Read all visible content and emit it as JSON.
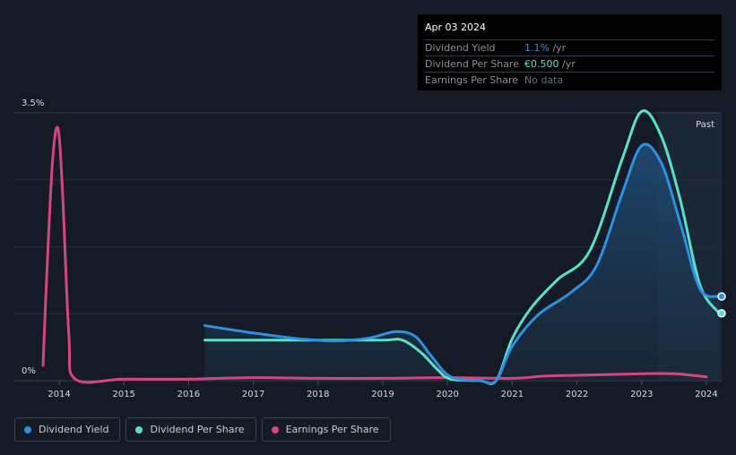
{
  "tooltip": {
    "date": "Apr 03 2024",
    "rows": [
      {
        "label": "Dividend Yield",
        "value": "1.1%",
        "unit": " /yr",
        "color": "#2f8fe0"
      },
      {
        "label": "Dividend Per Share",
        "value": "€0.500",
        "unit": " /yr",
        "color": "#5be0c8"
      },
      {
        "label": "Earnings Per Share",
        "value": "No data",
        "unit": "",
        "color": "#6b717b"
      }
    ]
  },
  "legend": [
    {
      "label": "Dividend Yield",
      "color": "#2f8fe0"
    },
    {
      "label": "Dividend Per Share",
      "color": "#5be0c8"
    },
    {
      "label": "Earnings Per Share",
      "color": "#d6457f"
    }
  ],
  "chart_data": {
    "type": "line",
    "title": "",
    "xlabel": "",
    "ylabel": "",
    "ylim": [
      0,
      3.5
    ],
    "xlim": [
      2013.5,
      2024.25
    ],
    "y_tick_labels": [
      "0%",
      "3.5%"
    ],
    "x_ticks": [
      "2014",
      "2015",
      "2016",
      "2017",
      "2018",
      "2019",
      "2020",
      "2021",
      "2022",
      "2023",
      "2024"
    ],
    "past_label": "Past",
    "past_start": 2023.25,
    "series": [
      {
        "name": "Dividend Yield",
        "color": "#2f8fe0",
        "points": [
          [
            2016.25,
            0.72
          ],
          [
            2016.7,
            0.66
          ],
          [
            2017.2,
            0.6
          ],
          [
            2017.8,
            0.54
          ],
          [
            2018.3,
            0.52
          ],
          [
            2018.8,
            0.56
          ],
          [
            2019.2,
            0.64
          ],
          [
            2019.5,
            0.58
          ],
          [
            2019.75,
            0.32
          ],
          [
            2020.05,
            0.05
          ],
          [
            2020.5,
            0.0
          ],
          [
            2020.75,
            0.0
          ],
          [
            2021.0,
            0.45
          ],
          [
            2021.4,
            0.86
          ],
          [
            2021.9,
            1.15
          ],
          [
            2022.3,
            1.5
          ],
          [
            2022.7,
            2.45
          ],
          [
            2023.0,
            3.07
          ],
          [
            2023.3,
            2.85
          ],
          [
            2023.6,
            2.05
          ],
          [
            2023.9,
            1.2
          ],
          [
            2024.2,
            1.1
          ]
        ],
        "end_value": 1.1
      },
      {
        "name": "Dividend Per Share",
        "color": "#5be0c8",
        "points": [
          [
            2016.25,
            0.53
          ],
          [
            2017.0,
            0.53
          ],
          [
            2018.0,
            0.53
          ],
          [
            2019.0,
            0.53
          ],
          [
            2019.3,
            0.53
          ],
          [
            2019.6,
            0.36
          ],
          [
            2019.85,
            0.14
          ],
          [
            2020.05,
            0.02
          ],
          [
            2020.5,
            0.0
          ],
          [
            2020.75,
            0.0
          ],
          [
            2021.0,
            0.55
          ],
          [
            2021.3,
            0.96
          ],
          [
            2021.7,
            1.32
          ],
          [
            2022.2,
            1.7
          ],
          [
            2022.7,
            2.9
          ],
          [
            2023.0,
            3.52
          ],
          [
            2023.3,
            3.2
          ],
          [
            2023.6,
            2.35
          ],
          [
            2023.9,
            1.25
          ],
          [
            2024.2,
            0.88
          ]
        ],
        "end_value": 0.88
      },
      {
        "name": "Earnings Per Share",
        "color": "#d6457f",
        "points": [
          [
            2013.75,
            0.2
          ],
          [
            2013.82,
            1.6
          ],
          [
            2013.9,
            2.9
          ],
          [
            2013.98,
            3.3
          ],
          [
            2014.05,
            2.5
          ],
          [
            2014.15,
            0.6
          ],
          [
            2014.25,
            0.02
          ],
          [
            2015.0,
            0.02
          ],
          [
            2016.0,
            0.02
          ],
          [
            2017.0,
            0.04
          ],
          [
            2018.0,
            0.03
          ],
          [
            2019.0,
            0.03
          ],
          [
            2020.0,
            0.04
          ],
          [
            2021.0,
            0.03
          ],
          [
            2021.5,
            0.06
          ],
          [
            2022.0,
            0.07
          ],
          [
            2023.0,
            0.09
          ],
          [
            2023.5,
            0.09
          ],
          [
            2024.0,
            0.05
          ]
        ]
      }
    ]
  }
}
